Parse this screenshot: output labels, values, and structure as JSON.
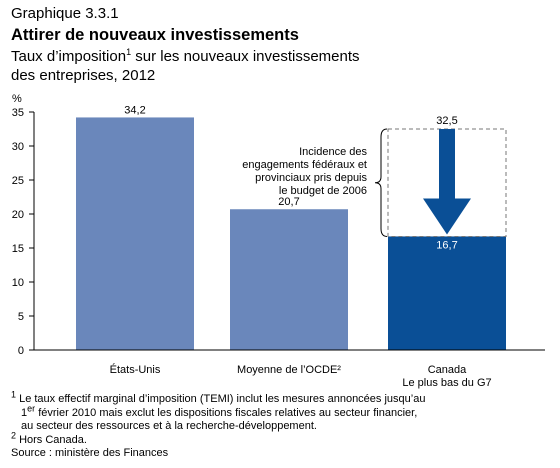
{
  "header": {
    "label": "Graphique 3.3.1",
    "title": "Attirer de nouveaux investissements",
    "subtitle_before": "Taux d’imposition",
    "subtitle_sup": "1",
    "subtitle_after": " sur les nouveaux investissements des entreprises, 2012"
  },
  "chart_data": {
    "type": "bar",
    "categories": [
      [
        "États-Unis"
      ],
      [
        "Moyenne de l’OCDE²"
      ],
      [
        "Canada",
        "Le plus bas du G7"
      ]
    ],
    "values": [
      34.2,
      20.7,
      16.7
    ],
    "value_labels": [
      "34,2",
      "20,7",
      "16,7"
    ],
    "previous_value": 32.5,
    "previous_value_label": "32,5",
    "ylabel": "%",
    "ylim": [
      0,
      35
    ],
    "yticks": [
      0,
      5,
      10,
      15,
      20,
      25,
      30,
      35
    ],
    "annotation": [
      "Incidence des",
      "engagements fédéraux et",
      "provinciaux pris depuis",
      "le budget de 2006"
    ],
    "colors": {
      "standard": "#6a87bb",
      "highlight": "#0a4f96",
      "axis": "#000000"
    }
  },
  "footnotes": {
    "note1_mark": "1",
    "note1_line1": " Le taux effectif marginal d’imposition (TEMI) inclut les mesures annoncées jusqu’au",
    "note1_line2_pre": "1",
    "note1_line2_sup": "er",
    "note1_line2_post": " février 2010 mais exclut les dispositions fiscales relatives au secteur financier,",
    "note1_line3": "au secteur des ressources et à la recherche-développement.",
    "note2_mark": "2",
    "note2_text": " Hors Canada.",
    "source": "Source : ministère des Finances"
  }
}
